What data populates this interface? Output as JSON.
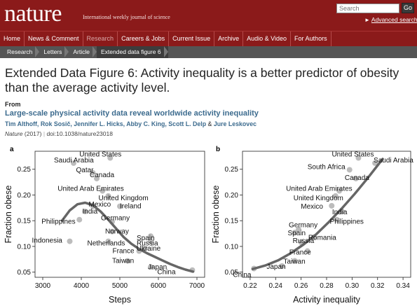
{
  "header": {
    "logo": "nature",
    "tagline": "International weekly journal of science",
    "search_placeholder": "Search",
    "search_go": "Go",
    "advanced_search": "Advanced search"
  },
  "nav": {
    "items": [
      {
        "label": "Home"
      },
      {
        "label": "News & Comment"
      },
      {
        "label": "Research"
      },
      {
        "label": "Careers & Jobs"
      },
      {
        "label": "Current Issue"
      },
      {
        "label": "Archive"
      },
      {
        "label": "Audio & Video"
      },
      {
        "label": "For Authors"
      }
    ],
    "active_index": 2
  },
  "breadcrumb": {
    "items": [
      "Research",
      "Letters",
      "Article",
      "Extended data figure 6"
    ]
  },
  "article": {
    "figure_title": "Extended Data Figure 6: Activity inequality is a better predictor of obesity than the average activity level.",
    "from_label": "From",
    "title": "Large-scale physical activity data reveal worldwide activity inequality",
    "authors_main": "Tim Althoff, Rok Sosič, Jennifer L. Hicks, Abby C. King, Scott L. Delp",
    "authors_amp": "&",
    "authors_last": "Jure Leskovec",
    "journal": "Nature",
    "year": "(2017)",
    "separator": "|",
    "doi": "doi:10.1038/nature23018"
  },
  "chart_data": [
    {
      "panel_label": "a",
      "type": "scatter",
      "xlabel": "Steps",
      "ylabel": "Fraction obese",
      "xlim": [
        2800,
        7200
      ],
      "ylim": [
        0.04,
        0.285
      ],
      "xticks": [
        3000,
        4000,
        5000,
        6000,
        7000
      ],
      "yticks": [
        0.05,
        0.1,
        0.15,
        0.2,
        0.25
      ],
      "ytick_labels": [
        "0.05",
        "0.10",
        "0.15",
        "0.20",
        "0.25"
      ],
      "points": [
        {
          "label": "United States",
          "x": 4750,
          "y": 0.272
        },
        {
          "label": "Saudi Arabia",
          "x": 3800,
          "y": 0.262
        },
        {
          "label": "Qatar",
          "x": 4300,
          "y": 0.243
        },
        {
          "label": "Canada",
          "x": 4400,
          "y": 0.232
        },
        {
          "label": "United Arab Emirates",
          "x": 4550,
          "y": 0.208
        },
        {
          "label": "United Kingdom",
          "x": 4700,
          "y": 0.198
        },
        {
          "label": "Mexico",
          "x": 4300,
          "y": 0.179
        },
        {
          "label": "India",
          "x": 4100,
          "y": 0.168
        },
        {
          "label": "Ireland",
          "x": 5000,
          "y": 0.178
        },
        {
          "label": "Philippines",
          "x": 3950,
          "y": 0.152
        },
        {
          "label": "Germany",
          "x": 4800,
          "y": 0.148
        },
        {
          "label": "Norway",
          "x": 4800,
          "y": 0.129
        },
        {
          "label": "Indonesia",
          "x": 3700,
          "y": 0.11
        },
        {
          "label": "Spain",
          "x": 5800,
          "y": 0.12
        },
        {
          "label": "Russia",
          "x": 5800,
          "y": 0.11
        },
        {
          "label": "Netherlands",
          "x": 4700,
          "y": 0.11
        },
        {
          "label": "France",
          "x": 5500,
          "y": 0.091
        },
        {
          "label": "Ukraine",
          "x": 5650,
          "y": 0.096
        },
        {
          "label": "Taiwan",
          "x": 5200,
          "y": 0.072
        },
        {
          "label": "Japan",
          "x": 5800,
          "y": 0.06
        },
        {
          "label": "China",
          "x": 6880,
          "y": 0.054
        }
      ],
      "fit_curve": {
        "x": [
          3500,
          3700,
          3900,
          4100,
          4300,
          4500,
          4700,
          4900,
          5100,
          5300,
          5500,
          5700,
          5900,
          6100,
          6300,
          6500,
          6700,
          6900
        ],
        "y": [
          0.15,
          0.17,
          0.182,
          0.185,
          0.18,
          0.168,
          0.152,
          0.135,
          0.118,
          0.105,
          0.095,
          0.087,
          0.08,
          0.073,
          0.066,
          0.06,
          0.055,
          0.051
        ]
      },
      "colors": {
        "points": "#b5b5b5",
        "curve": "#666666"
      }
    },
    {
      "panel_label": "b",
      "type": "scatter",
      "xlabel": "Activity inequality",
      "ylabel": "Fraction obese",
      "xlim": [
        0.214,
        0.346
      ],
      "ylim": [
        0.04,
        0.285
      ],
      "xticks": [
        0.22,
        0.24,
        0.26,
        0.28,
        0.3,
        0.32,
        0.34
      ],
      "xtick_labels": [
        "0.22",
        "0.24",
        "0.26",
        "0.28",
        "0.30",
        "0.32",
        "0.34"
      ],
      "yticks": [
        0.05,
        0.1,
        0.15,
        0.2,
        0.25
      ],
      "ytick_labels": [
        "0.05",
        "0.10",
        "0.15",
        "0.20",
        "0.25"
      ],
      "points": [
        {
          "label": "United States",
          "x": 0.305,
          "y": 0.272
        },
        {
          "label": "Saudi Arabia",
          "x": 0.318,
          "y": 0.262
        },
        {
          "label": "South Africa",
          "x": 0.298,
          "y": 0.249
        },
        {
          "label": "Canada",
          "x": 0.303,
          "y": 0.232
        },
        {
          "label": "United Arab Emirates",
          "x": 0.29,
          "y": 0.208
        },
        {
          "label": "United Kingdom",
          "x": 0.287,
          "y": 0.198
        },
        {
          "label": "Mexico",
          "x": 0.284,
          "y": 0.179
        },
        {
          "label": "India",
          "x": 0.292,
          "y": 0.168
        },
        {
          "label": "Philippines",
          "x": 0.288,
          "y": 0.152
        },
        {
          "label": "Germany",
          "x": 0.258,
          "y": 0.133
        },
        {
          "label": "Spain",
          "x": 0.255,
          "y": 0.127
        },
        {
          "label": "Romania",
          "x": 0.27,
          "y": 0.118
        },
        {
          "label": "Russia",
          "x": 0.26,
          "y": 0.108
        },
        {
          "label": "France",
          "x": 0.265,
          "y": 0.091
        },
        {
          "label": "Taiwan",
          "x": 0.255,
          "y": 0.072
        },
        {
          "label": "Japan",
          "x": 0.245,
          "y": 0.062
        },
        {
          "label": "China",
          "x": 0.223,
          "y": 0.057
        }
      ],
      "fit_curve": {
        "x": [
          0.222,
          0.232,
          0.242,
          0.252,
          0.262,
          0.272,
          0.282,
          0.292,
          0.302,
          0.312,
          0.324
        ],
        "y": [
          0.056,
          0.063,
          0.073,
          0.087,
          0.104,
          0.124,
          0.148,
          0.174,
          0.202,
          0.232,
          0.27
        ]
      },
      "colors": {
        "points": "#b5b5b5",
        "curve": "#666666"
      }
    }
  ]
}
